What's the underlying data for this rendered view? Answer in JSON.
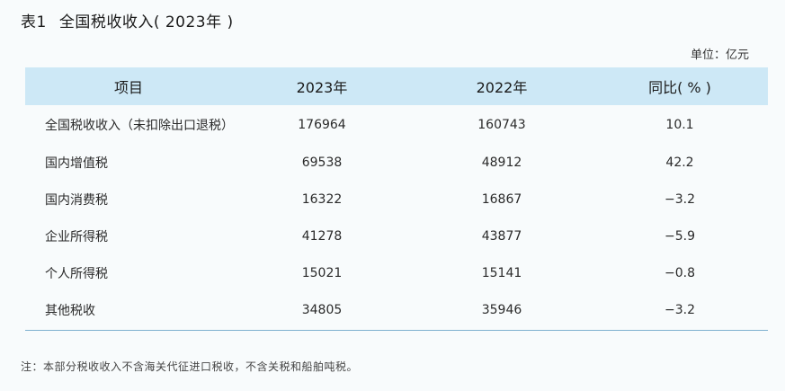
{
  "title": {
    "label": "表1",
    "text": "全国税收收入( 2023年 )"
  },
  "unit": "单位：亿元",
  "table": {
    "headers": [
      "项目",
      "2023年",
      "2022年",
      "同比( % )"
    ],
    "rows": [
      [
        "全国税收收入（未扣除出口退税）",
        "176964",
        "160743",
        "10.1"
      ],
      [
        "国内增值税",
        "69538",
        "48912",
        "42.2"
      ],
      [
        "国内消费税",
        "16322",
        "16867",
        "−3.2"
      ],
      [
        "企业所得税",
        "41278",
        "43877",
        "−5.9"
      ],
      [
        "个人所得税",
        "15021",
        "15141",
        "−0.8"
      ],
      [
        "其他税收",
        "34805",
        "35946",
        "−3.2"
      ]
    ]
  },
  "note": "注：本部分税收收入不含海关代征进口税收，不含关税和船舶吨税。"
}
